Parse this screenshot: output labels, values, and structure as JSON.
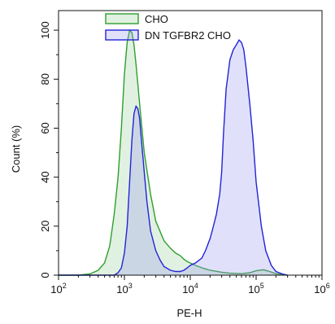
{
  "chart_data": {
    "type": "area",
    "xlabel": "PE-H",
    "ylabel": "Count (%)",
    "x_scale": "log10",
    "xlim": [
      100,
      1000000
    ],
    "ylim": [
      0,
      108
    ],
    "x_ticks": [
      {
        "value": 100,
        "base": "10",
        "exp": "2"
      },
      {
        "value": 1000,
        "base": "10",
        "exp": "3"
      },
      {
        "value": 10000,
        "base": "10",
        "exp": "4"
      },
      {
        "value": 100000,
        "base": "10",
        "exp": "5"
      },
      {
        "value": 1000000,
        "base": "10",
        "exp": "6"
      }
    ],
    "y_ticks": [
      "0",
      "20",
      "40",
      "60",
      "80",
      "100"
    ],
    "grid": false,
    "legend_position": "top-left",
    "series": [
      {
        "name": "CHO",
        "stroke": "#2e9e2e",
        "fill": "#2e9e2e",
        "x": [
          100,
          200,
          300,
          400,
          500,
          600,
          700,
          800,
          900,
          1000,
          1100,
          1200,
          1300,
          1400,
          1500,
          1700,
          2000,
          2500,
          3000,
          4000,
          5000,
          6000,
          7000,
          8000,
          9000,
          10000,
          12000,
          15000,
          20000,
          30000,
          40000,
          60000,
          80000,
          100000,
          130000,
          160000,
          200000,
          300000
        ],
        "y": [
          0,
          0,
          0.5,
          2,
          5,
          12,
          25,
          40,
          60,
          82,
          95,
          100,
          99,
          94,
          86,
          70,
          50,
          33,
          22,
          14,
          11,
          9,
          8,
          6.5,
          5.5,
          5,
          4,
          3,
          2,
          1.2,
          0.8,
          0.6,
          1,
          1.8,
          2.2,
          1.5,
          0.6,
          0
        ]
      },
      {
        "name": "DN TGFBR2 CHO",
        "stroke": "#2323d8",
        "fill": "#9999ee",
        "x": [
          100,
          500,
          700,
          800,
          900,
          1000,
          1100,
          1200,
          1300,
          1400,
          1500,
          1600,
          1700,
          1800,
          2000,
          2200,
          2500,
          3000,
          3500,
          4000,
          5000,
          6000,
          7000,
          8000,
          9000,
          10000,
          12000,
          15000,
          17000,
          20000,
          22000,
          25000,
          28000,
          30000,
          32000,
          35000,
          40000,
          45000,
          50000,
          55000,
          60000,
          65000,
          70000,
          80000,
          90000,
          100000,
          120000,
          140000,
          170000,
          200000,
          250000,
          300000
        ],
        "y": [
          0,
          0,
          0,
          1,
          3,
          9,
          20,
          38,
          55,
          66,
          69,
          68,
          64,
          56,
          42,
          30,
          18,
          10,
          6,
          3.5,
          2,
          1.5,
          1.5,
          2,
          3,
          4,
          5,
          7,
          10,
          15,
          19,
          25,
          33,
          42,
          58,
          76,
          88,
          92,
          94,
          96,
          95,
          92,
          85,
          70,
          55,
          38,
          20,
          10,
          4,
          1.5,
          0.5,
          0
        ]
      }
    ]
  }
}
